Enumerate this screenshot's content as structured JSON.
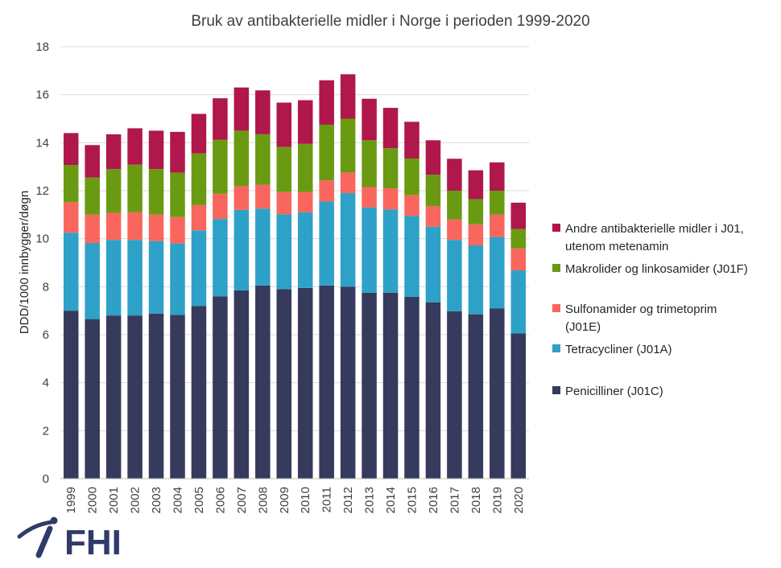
{
  "chart_data": {
    "type": "bar",
    "stacked": true,
    "title": "Bruk av antibakterielle midler i Norge i perioden 1999-2020",
    "xlabel": "",
    "ylabel": "DDD/1000 innbygger/døgn",
    "ylim": [
      0,
      18
    ],
    "yticks": [
      0,
      2,
      4,
      6,
      8,
      10,
      12,
      14,
      16,
      18
    ],
    "grid": true,
    "legend_position": "right",
    "categories": [
      "1999",
      "2000",
      "2001",
      "2002",
      "2003",
      "2004",
      "2005",
      "2006",
      "2007",
      "2008",
      "2009",
      "2010",
      "2011",
      "2012",
      "2013",
      "2014",
      "2015",
      "2016",
      "2017",
      "2018",
      "2019",
      "2020"
    ],
    "series": [
      {
        "name": "Penicilliner (J01C)",
        "legend_lines": [
          "Penicilliner (J01C)"
        ],
        "color": "#363a5c",
        "values": [
          7.0,
          6.65,
          6.8,
          6.8,
          6.88,
          6.82,
          7.2,
          7.6,
          7.85,
          8.05,
          7.9,
          7.95,
          8.05,
          8.0,
          7.75,
          7.75,
          7.58,
          7.35,
          6.98,
          6.85,
          7.1,
          6.05
        ]
      },
      {
        "name": "Tetracycliner (J01A)",
        "legend_lines": [
          "Tetracycliner (J01A)"
        ],
        "color": "#2ea1c8",
        "values": [
          3.25,
          3.17,
          3.15,
          3.15,
          3.02,
          2.98,
          3.15,
          3.22,
          3.35,
          3.2,
          3.12,
          3.15,
          3.5,
          3.9,
          3.55,
          3.47,
          3.37,
          3.15,
          2.97,
          2.87,
          2.97,
          2.63
        ]
      },
      {
        "name": "Sulfonamider og trimetoprim (J01E)",
        "legend_lines": [
          "Sulfonamider og trimetoprim",
          "(J01E)"
        ],
        "color": "#f9665d",
        "values": [
          1.27,
          1.18,
          1.13,
          1.15,
          1.1,
          1.1,
          1.05,
          1.05,
          1.0,
          1.0,
          0.92,
          0.85,
          0.88,
          0.85,
          0.85,
          0.88,
          0.87,
          0.85,
          0.85,
          0.88,
          0.93,
          0.92
        ]
      },
      {
        "name": "Makrolider og linkosamider (J01F)",
        "legend_lines": [
          "Makrolider og linkosamider (J01F)"
        ],
        "color": "#6a9a11",
        "values": [
          1.55,
          1.55,
          1.82,
          1.98,
          1.9,
          1.85,
          2.15,
          2.25,
          2.3,
          2.1,
          1.88,
          2.0,
          2.32,
          2.25,
          1.95,
          1.67,
          1.52,
          1.32,
          1.2,
          1.05,
          1.0,
          0.8
        ]
      },
      {
        "name": "Andre antibakterielle midler i J01, utenom metenamin",
        "legend_lines": [
          "Andre antibakterielle midler i J01,",
          "utenom metenamin"
        ],
        "color": "#b0174a",
        "values": [
          1.33,
          1.35,
          1.45,
          1.52,
          1.6,
          1.7,
          1.65,
          1.73,
          1.8,
          1.83,
          1.85,
          1.82,
          1.85,
          1.85,
          1.73,
          1.68,
          1.53,
          1.43,
          1.33,
          1.2,
          1.18,
          1.1
        ]
      }
    ]
  },
  "logo": {
    "text": "FHI",
    "color": "#2f3b6b"
  }
}
